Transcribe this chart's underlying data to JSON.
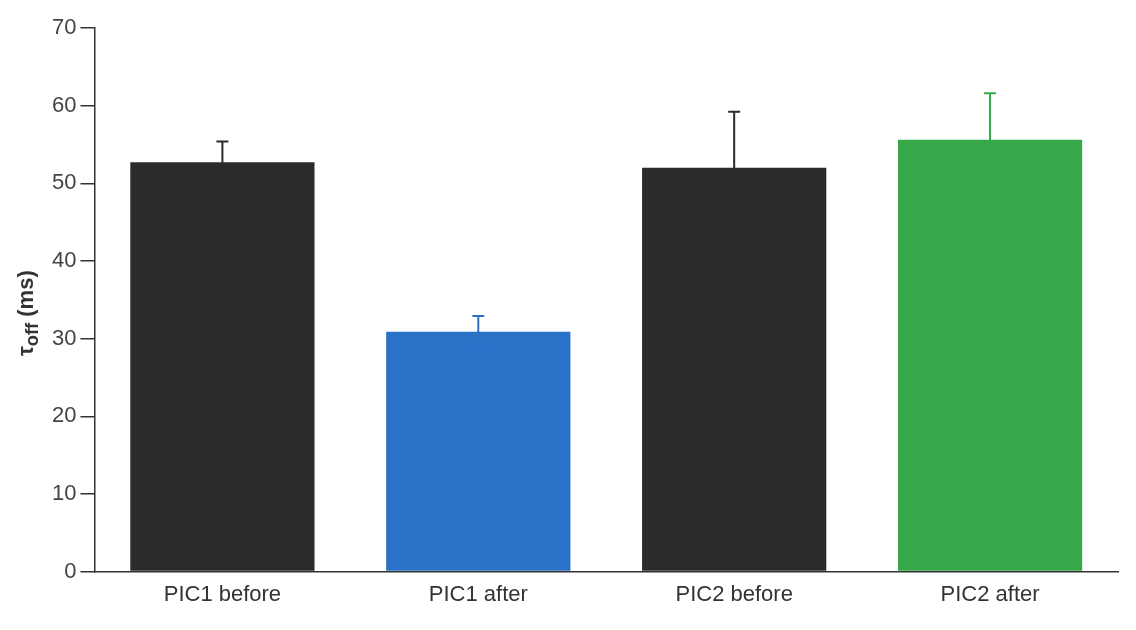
{
  "chart_data": {
    "type": "bar",
    "ylabel": "τ$_{off}$ (ms)",
    "categories": [
      "PIC1 before",
      "PIC1 after",
      "PIC2 before",
      "PIC2 after"
    ],
    "values": [
      52.7,
      30.9,
      52.0,
      55.6
    ],
    "colors": [
      "#2b2b2b",
      "#2a72c8",
      "#2b2b2b",
      "#36a84a"
    ],
    "errors": [
      2.7,
      2.0,
      7.2,
      6.0
    ],
    "ylim": [
      0,
      70
    ],
    "yticks": [
      0,
      10,
      20,
      30,
      40,
      50,
      60,
      70
    ],
    "grid": false,
    "legend": false
  }
}
